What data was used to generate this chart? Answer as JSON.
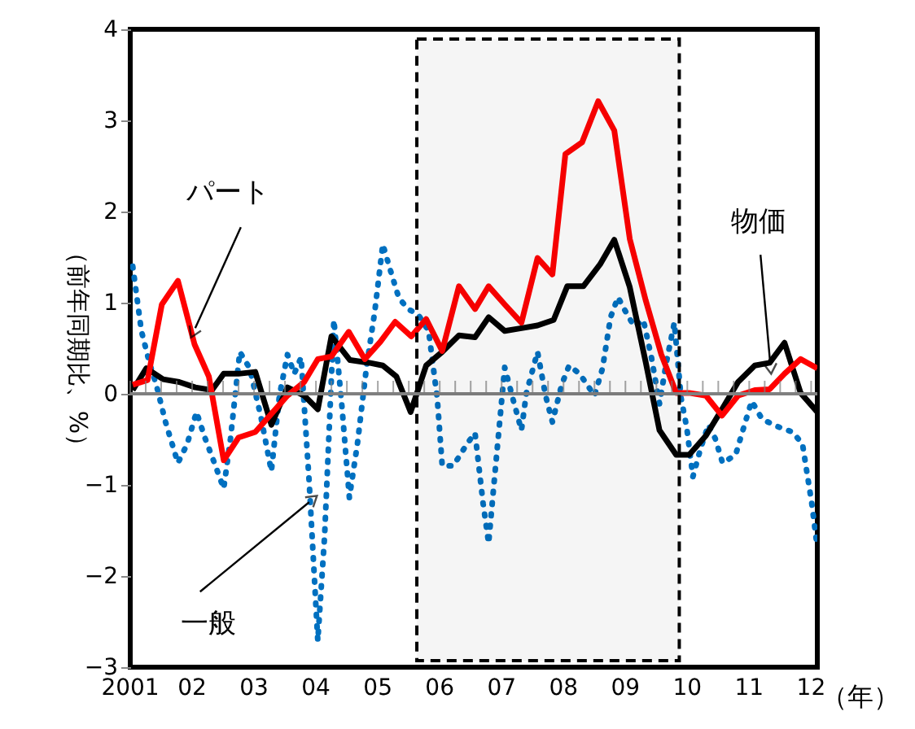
{
  "chart_data": {
    "type": "line",
    "xlabel": "（年）",
    "ylabel": "（前年同期比、%）",
    "xlim": [
      2001,
      2012.1
    ],
    "xticks": [
      {
        "value": 2001,
        "label": "2001"
      },
      {
        "value": 2002,
        "label": "02"
      },
      {
        "value": 2003,
        "label": "03"
      },
      {
        "value": 2004,
        "label": "04"
      },
      {
        "value": 2005,
        "label": "05"
      },
      {
        "value": 2006,
        "label": "06"
      },
      {
        "value": 2007,
        "label": "07"
      },
      {
        "value": 2008,
        "label": "08"
      },
      {
        "value": 2009,
        "label": "09"
      },
      {
        "value": 2010,
        "label": "10"
      },
      {
        "value": 2011,
        "label": "11"
      },
      {
        "value": 2012,
        "label": "12"
      }
    ],
    "ylim": [
      -3,
      4
    ],
    "yticks": [
      -3,
      -2,
      -1,
      0,
      1,
      2,
      3,
      4
    ],
    "grid": false,
    "series": [
      {
        "color": "#0070c0",
        "line_style": "dotted",
        "x": [
          2001.04,
          2001.18,
          2001.31,
          2001.42,
          2001.57,
          2001.77,
          2001.92,
          2002.07,
          2002.21,
          2002.36,
          2002.51,
          2002.62,
          2002.77,
          2002.93,
          2003.11,
          2003.28,
          2003.41,
          2003.54,
          2003.65,
          2003.76,
          2003.89,
          2004.03,
          2004.14,
          2004.29,
          2004.42,
          2004.54,
          2004.67,
          2004.82,
          2004.95,
          2005.08,
          2005.21,
          2005.34,
          2005.49,
          2005.65,
          2005.82,
          2005.96,
          2006.04,
          2006.22,
          2006.44,
          2006.57,
          2006.7,
          2006.79,
          2006.88,
          2007.05,
          2007.18,
          2007.32,
          2007.4,
          2007.58,
          2007.71,
          2007.82,
          2007.97,
          2008.09,
          2008.26,
          2008.37,
          2008.5,
          2008.63,
          2008.76,
          2008.88,
          2008.98,
          2009.14,
          2009.29,
          2009.42,
          2009.55,
          2009.66,
          2009.79,
          2009.9,
          2009.99,
          2010.09,
          2010.21,
          2010.34,
          2010.45,
          2010.57,
          2010.78,
          2010.95,
          2011.04,
          2011.21,
          2011.46,
          2011.7,
          2011.86,
          2012.01,
          2012.1
        ],
        "values": [
          1.4,
          0.69,
          0.34,
          0.1,
          -0.31,
          -0.76,
          -0.55,
          -0.2,
          -0.49,
          -0.76,
          -1.04,
          -0.49,
          0.46,
          0.28,
          -0.25,
          -0.85,
          -0.02,
          0.43,
          0.22,
          0.4,
          -0.96,
          -2.71,
          -1.56,
          0.81,
          -0.14,
          -1.14,
          -0.55,
          0.31,
          0.9,
          1.64,
          1.34,
          1.05,
          0.93,
          0.87,
          0.69,
          -0.05,
          -0.79,
          -0.79,
          -0.55,
          -0.43,
          -1.2,
          -1.64,
          -0.96,
          0.29,
          -0.05,
          -0.4,
          0.01,
          0.46,
          -0.02,
          -0.31,
          0.1,
          0.31,
          0.22,
          0.11,
          -0.02,
          0.28,
          0.84,
          1.06,
          0.93,
          0.74,
          0.81,
          0.4,
          -0.11,
          0.34,
          0.78,
          -0.05,
          -0.37,
          -0.91,
          -0.61,
          -0.34,
          -0.49,
          -0.76,
          -0.67,
          -0.28,
          -0.08,
          -0.28,
          -0.36,
          -0.42,
          -0.55,
          -1.2,
          -1.69
        ]
      },
      {
        "color": "#000000",
        "line_style": "solid",
        "x": [
          2001.04,
          2001.26,
          2001.53,
          2001.79,
          2002.05,
          2002.32,
          2002.51,
          2002.75,
          2003.02,
          2003.28,
          2003.54,
          2003.81,
          2004.03,
          2004.25,
          2004.55,
          2004.86,
          2005.08,
          2005.3,
          2005.53,
          2005.78,
          2006.04,
          2006.31,
          2006.57,
          2006.79,
          2007.05,
          2007.32,
          2007.58,
          2007.84,
          2008.06,
          2008.32,
          2008.59,
          2008.82,
          2009.07,
          2009.33,
          2009.55,
          2009.82,
          2010.03,
          2010.3,
          2010.56,
          2010.82,
          2011.09,
          2011.33,
          2011.57,
          2011.83,
          2012.1
        ],
        "values": [
          0.04,
          0.28,
          0.16,
          0.13,
          0.07,
          0.04,
          0.22,
          0.22,
          0.24,
          -0.34,
          0.07,
          -0.02,
          -0.17,
          0.63,
          0.37,
          0.34,
          0.31,
          0.19,
          -0.2,
          0.31,
          0.46,
          0.64,
          0.62,
          0.84,
          0.69,
          0.72,
          0.75,
          0.81,
          1.18,
          1.18,
          1.42,
          1.69,
          1.17,
          0.34,
          -0.4,
          -0.67,
          -0.67,
          -0.46,
          -0.17,
          0.13,
          0.31,
          0.34,
          0.56,
          0.01,
          -0.2
        ]
      },
      {
        "color": "#ff0000",
        "line_style": "solid",
        "x": [
          2001.04,
          2001.28,
          2001.51,
          2001.77,
          2002.04,
          2002.27,
          2002.51,
          2002.75,
          2003.02,
          2003.28,
          2003.54,
          2003.81,
          2004.03,
          2004.25,
          2004.53,
          2004.79,
          2005.04,
          2005.28,
          2005.54,
          2005.78,
          2006.04,
          2006.31,
          2006.57,
          2006.79,
          2007.05,
          2007.32,
          2007.58,
          2007.82,
          2008.03,
          2008.3,
          2008.56,
          2008.82,
          2009.07,
          2009.33,
          2009.58,
          2009.82,
          2010.03,
          2010.3,
          2010.56,
          2010.82,
          2011.09,
          2011.33,
          2011.57,
          2011.83,
          2012.1
        ],
        "values": [
          0.1,
          0.15,
          0.98,
          1.24,
          0.54,
          0.19,
          -0.73,
          -0.48,
          -0.42,
          -0.22,
          -0.02,
          0.13,
          0.38,
          0.41,
          0.68,
          0.38,
          0.57,
          0.79,
          0.63,
          0.82,
          0.47,
          1.18,
          0.93,
          1.18,
          0.98,
          0.78,
          1.49,
          1.31,
          2.63,
          2.76,
          3.21,
          2.89,
          1.7,
          1.02,
          0.43,
          0.01,
          0.01,
          -0.02,
          -0.24,
          -0.02,
          0.04,
          0.05,
          0.22,
          0.38,
          0.28
        ]
      }
    ],
    "ref_lines": [
      {
        "axis": "y",
        "value": 0,
        "color": "#808080"
      }
    ],
    "bands": [
      {
        "axis": "x",
        "from": 2005.63,
        "to": 2009.87,
        "color": "#000000"
      }
    ],
    "annotations": [
      {
        "text": "パート",
        "x": 2002.05,
        "y": 0.72
      },
      {
        "text": "一般",
        "x": 2003.89,
        "y": -1.19
      },
      {
        "text": "物価",
        "x": 2011.34,
        "y": 0.33
      }
    ]
  }
}
